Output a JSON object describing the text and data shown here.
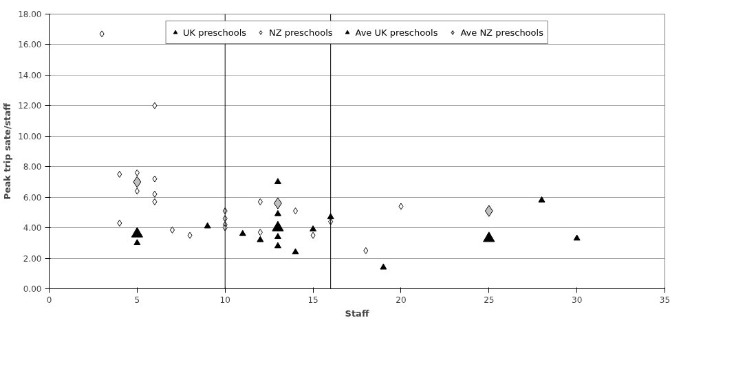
{
  "chart_data": {
    "type": "scatter",
    "xlabel": "Staff",
    "ylabel": "Peak trip sate/staff",
    "xlim": [
      0,
      35
    ],
    "xticks": [
      0,
      5,
      10,
      15,
      20,
      25,
      30,
      35
    ],
    "ylim": [
      0,
      18
    ],
    "yticks": [
      {
        "value": 0,
        "label": "0.00"
      },
      {
        "value": 2,
        "label": "2.00"
      },
      {
        "value": 4,
        "label": "4.00"
      },
      {
        "value": 6,
        "label": "6.00"
      },
      {
        "value": 8,
        "label": "8.00"
      },
      {
        "value": 10,
        "label": "10.00"
      },
      {
        "value": 12,
        "label": "12.00"
      },
      {
        "value": 14,
        "label": "14.00"
      },
      {
        "value": 16,
        "label": "16.00"
      },
      {
        "value": 18,
        "label": "18.00"
      }
    ],
    "grid": "y",
    "legend": "top",
    "series": [
      {
        "name": "UK preschools",
        "color": "#000000",
        "marker": "triangle",
        "x": [
          5,
          9,
          11,
          12,
          13,
          13,
          13,
          13,
          14,
          15,
          16,
          19,
          28,
          30
        ],
        "values": [
          3.0,
          4.1,
          3.6,
          3.2,
          7.0,
          4.9,
          3.4,
          2.8,
          2.4,
          3.9,
          4.7,
          1.4,
          5.8,
          3.3
        ]
      },
      {
        "name": "NZ preschools",
        "color": "#ffffff",
        "marker": "diamond",
        "x": [
          3,
          4,
          4,
          5,
          5,
          6,
          6,
          6,
          6,
          7,
          8,
          10,
          10,
          10,
          10,
          12,
          12,
          14,
          15,
          16,
          18,
          20
        ],
        "values": [
          16.7,
          7.5,
          4.3,
          7.6,
          6.4,
          12.0,
          7.2,
          6.2,
          5.7,
          3.85,
          3.5,
          5.1,
          4.6,
          4.2,
          4.0,
          5.7,
          3.7,
          5.1,
          3.5,
          4.4,
          2.5,
          5.4
        ]
      },
      {
        "name": "Ave UK preschools",
        "color": "#000000",
        "marker": "triangle",
        "x": [
          5,
          13,
          25
        ],
        "values": [
          3.6,
          4.0,
          3.3
        ]
      },
      {
        "name": "Ave NZ preschools",
        "color": "#c0c0c0",
        "marker": "diamond",
        "x": [
          5,
          13,
          25
        ],
        "values": [
          7.0,
          5.6,
          5.1
        ]
      }
    ],
    "ref_lines": [
      {
        "axis": "x",
        "value": 10,
        "color": "#000000"
      },
      {
        "axis": "x",
        "value": 16,
        "color": "#000000"
      }
    ]
  }
}
